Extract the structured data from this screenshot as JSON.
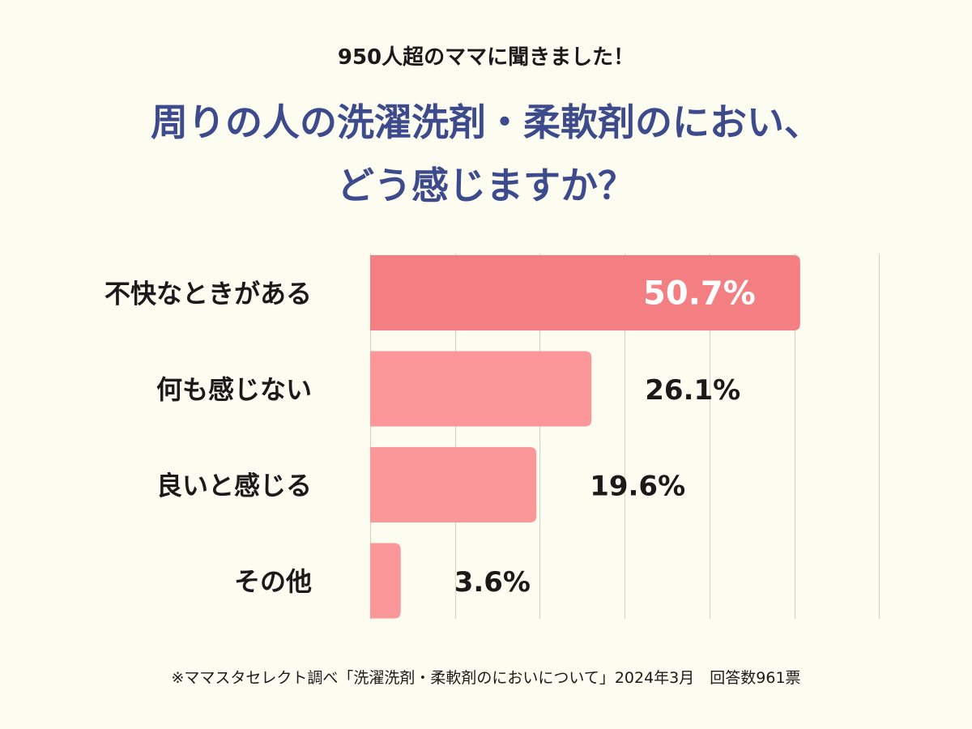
{
  "header": {
    "subtitle": "950人超のママに聞きました！",
    "title_line1": "周りの人の洗濯洗剤・柔軟剤のにおい、",
    "title_line2": "どう感じますか？"
  },
  "chart_data": {
    "type": "bar",
    "orientation": "horizontal",
    "categories": [
      "不快なときがある",
      "何も感じない",
      "良いと感じる",
      "その他"
    ],
    "values": [
      50.7,
      26.1,
      19.6,
      3.6
    ],
    "value_labels": [
      "50.7%",
      "26.1%",
      "19.6%",
      "3.6%"
    ],
    "xlim": [
      0,
      60
    ],
    "grid": true,
    "colors": {
      "highlight": "#f47f82",
      "bar": "#fb9799",
      "grid": "#d8d5c8",
      "label_inside": "#ffffff",
      "label_outside": "#1a1a1a"
    }
  },
  "footnote": "※ママスタセレクト調べ「洗濯洗剤・柔軟剤のにおいについて」2024年3月　回答数961票"
}
